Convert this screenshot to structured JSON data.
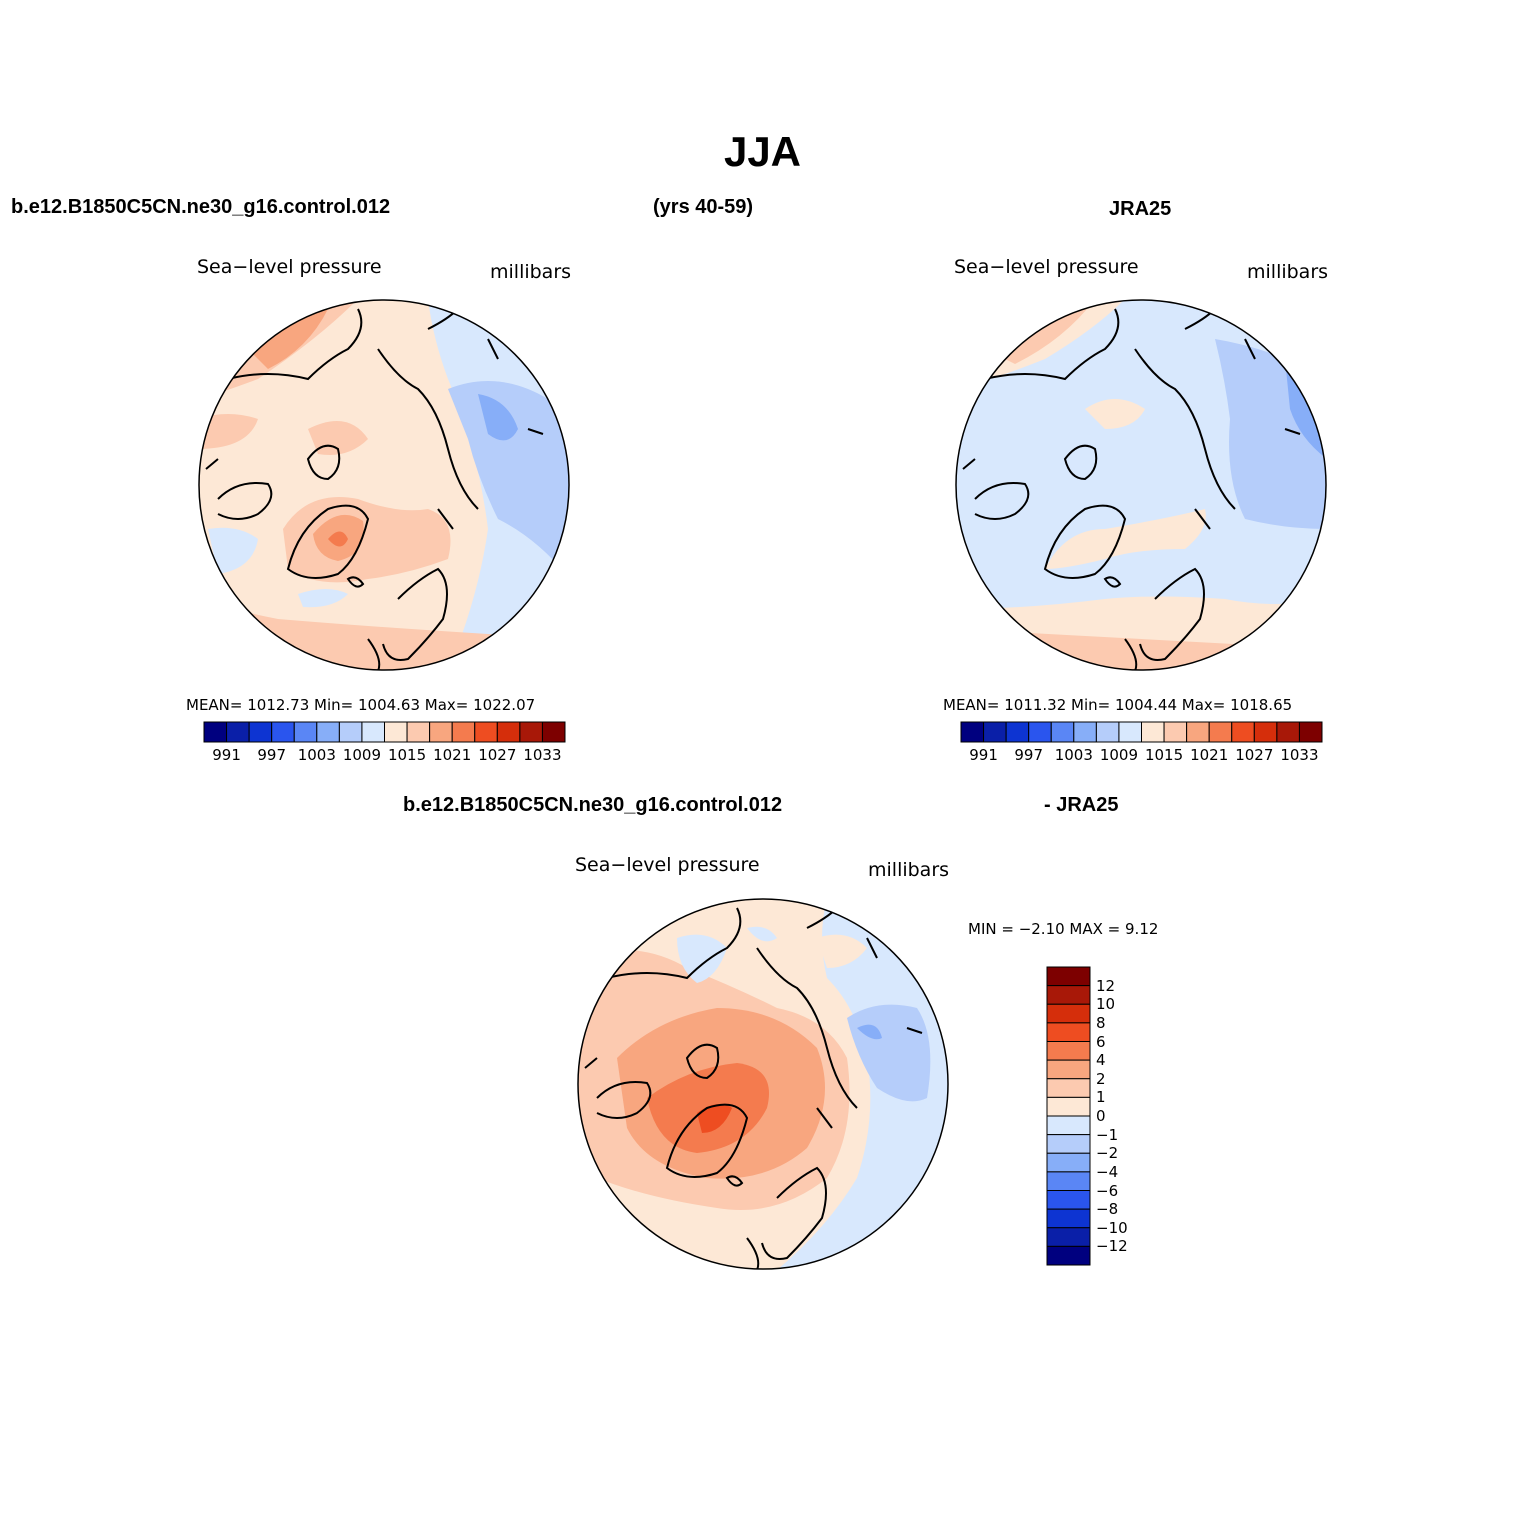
{
  "figure_title": "JJA",
  "headers": {
    "model_run": "b.e12.B1850C5CN.ne30_g16.control.012",
    "years": "(yrs 40-59)",
    "obs": "JRA25",
    "diff_model": "b.e12.B1850C5CN.ne30_g16.control.012",
    "diff_obs": "- JRA25"
  },
  "panels": [
    {
      "variable": "Sea−level pressure",
      "units": "millibars",
      "stats": "MEAN=  1012.73   Min=  1004.63    Max=  1022.07"
    },
    {
      "variable": "Sea−level pressure",
      "units": "millibars",
      "stats": "MEAN=  1011.32   Min=  1004.44    Max=  1018.65"
    },
    {
      "variable": "Sea−level pressure",
      "units": "millibars",
      "stats": "MIN =   −2.10  MAX =     9.12"
    }
  ],
  "colorbar_abs": {
    "colors": [
      "#00007f",
      "#0a1fa8",
      "#0d34d2",
      "#2a55ee",
      "#5a86f5",
      "#87aef8",
      "#b5cdfa",
      "#d8e8fd",
      "#fde8d6",
      "#fccab0",
      "#f8a67f",
      "#f47b4e",
      "#ee4d21",
      "#d52e0b",
      "#a81808",
      "#7d0000"
    ],
    "labels": [
      "991",
      "997",
      "1003",
      "1009",
      "1015",
      "1021",
      "1027",
      "1033"
    ]
  },
  "colorbar_diff": {
    "colors": [
      "#7d0000",
      "#a81808",
      "#d52e0b",
      "#ee4d21",
      "#f47b4e",
      "#f8a67f",
      "#fccab0",
      "#fde8d6",
      "#d8e8fd",
      "#b5cdfa",
      "#87aef8",
      "#5a86f5",
      "#2a55ee",
      "#0d34d2",
      "#0a1fa8",
      "#00007f"
    ],
    "labels": [
      "12",
      "10",
      "8",
      "6",
      "4",
      "2",
      "1",
      "0",
      "−1",
      "−2",
      "−4",
      "−6",
      "−8",
      "−10",
      "−12"
    ]
  },
  "palette": {
    "blue_dark": "#87aef8",
    "blue_mid": "#b5cdfa",
    "blue_light": "#d8e8fd",
    "neutral": "#fde8d6",
    "orange_light": "#fccab0",
    "orange": "#f8a67f",
    "orange_dark": "#f47b4e",
    "red": "#ee4d21"
  }
}
